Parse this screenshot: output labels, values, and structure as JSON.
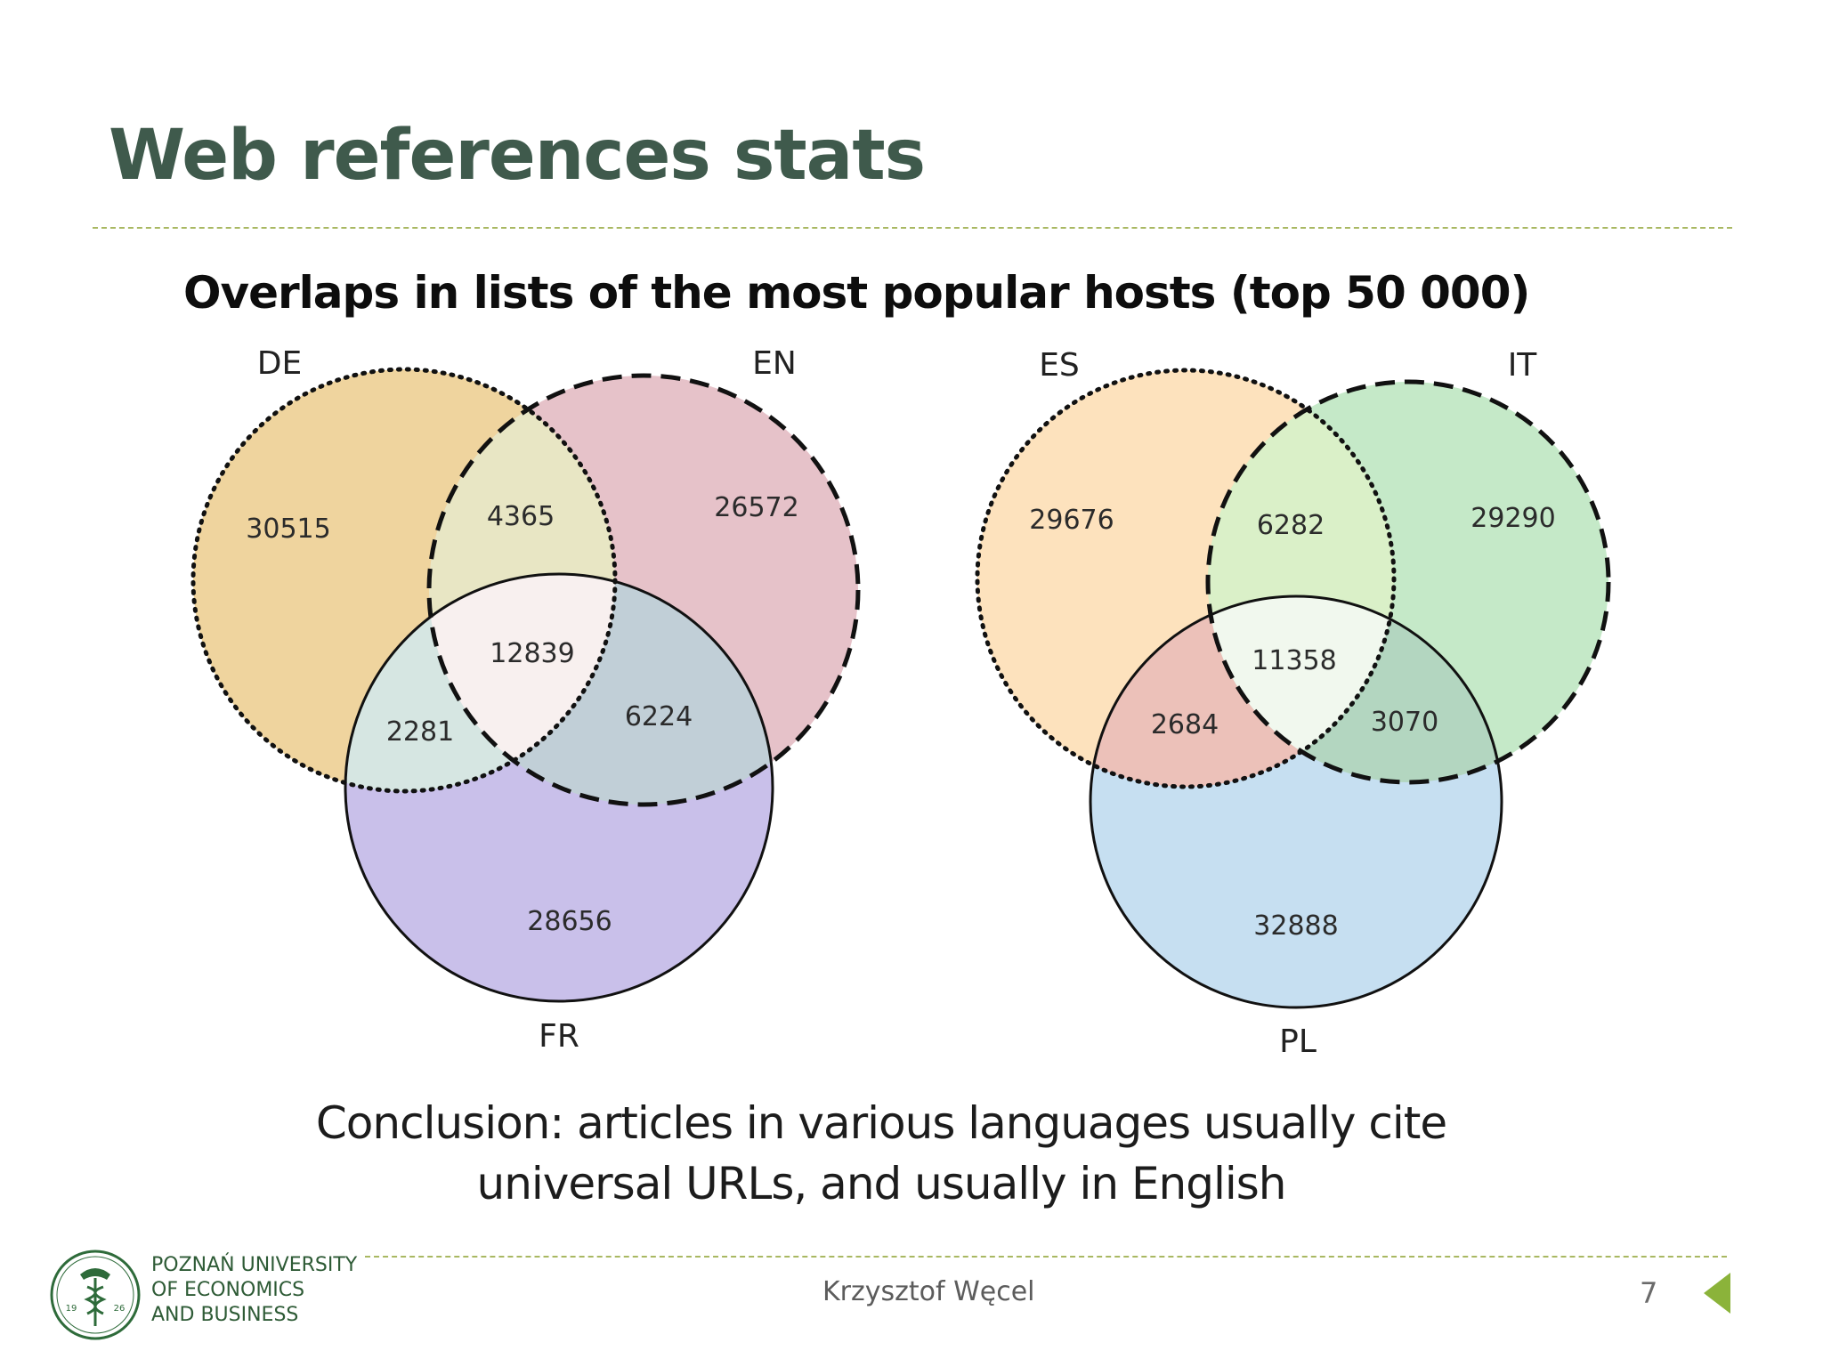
{
  "slide": {
    "title": "Web references stats",
    "subtitle": "Overlaps in lists of the most popular hosts (top 50 000)",
    "conclusion": [
      "Conclusion: articles in various languages usually cite",
      "universal URLs, and usually in English"
    ]
  },
  "diagrams": [
    {
      "sets": [
        "DE",
        "EN",
        "FR"
      ],
      "regions": {
        "DE": "30515",
        "EN": "26572",
        "FR": "28656",
        "DE_EN": "4365",
        "DE_FR": "2281",
        "EN_FR": "6224",
        "DE_EN_FR": "12839"
      },
      "colors": {
        "DE": "#efd49e",
        "EN": "#e6c2c9",
        "FR": "#c9c0ea",
        "DE_EN": "#e8e6c4",
        "DE_FR": "#d6e6e2",
        "EN_FR": "#c1cfd7",
        "DE_EN_FR": "#f8f0ef"
      }
    },
    {
      "sets": [
        "ES",
        "IT",
        "PL"
      ],
      "regions": {
        "ES": "29676",
        "IT": "29290",
        "PL": "32888",
        "ES_IT": "6282",
        "ES_PL": "2684",
        "IT_PL": "3070",
        "ES_IT_PL": "11358"
      },
      "colors": {
        "ES": "#fde2bd",
        "IT": "#c5e9c8",
        "PL": "#c6dff1",
        "ES_IT": "#daf0c8",
        "ES_PL": "#ecc1b9",
        "IT_PL": "#b3d6c0",
        "ES_IT_PL": "#f1f8ee"
      }
    }
  ],
  "footer": {
    "university": [
      "POZNAŃ UNIVERSITY",
      "OF ECONOMICS",
      "AND BUSINESS"
    ],
    "logo_year": [
      "19",
      "26"
    ],
    "author": "Krzysztof Węcel",
    "page": "7"
  }
}
